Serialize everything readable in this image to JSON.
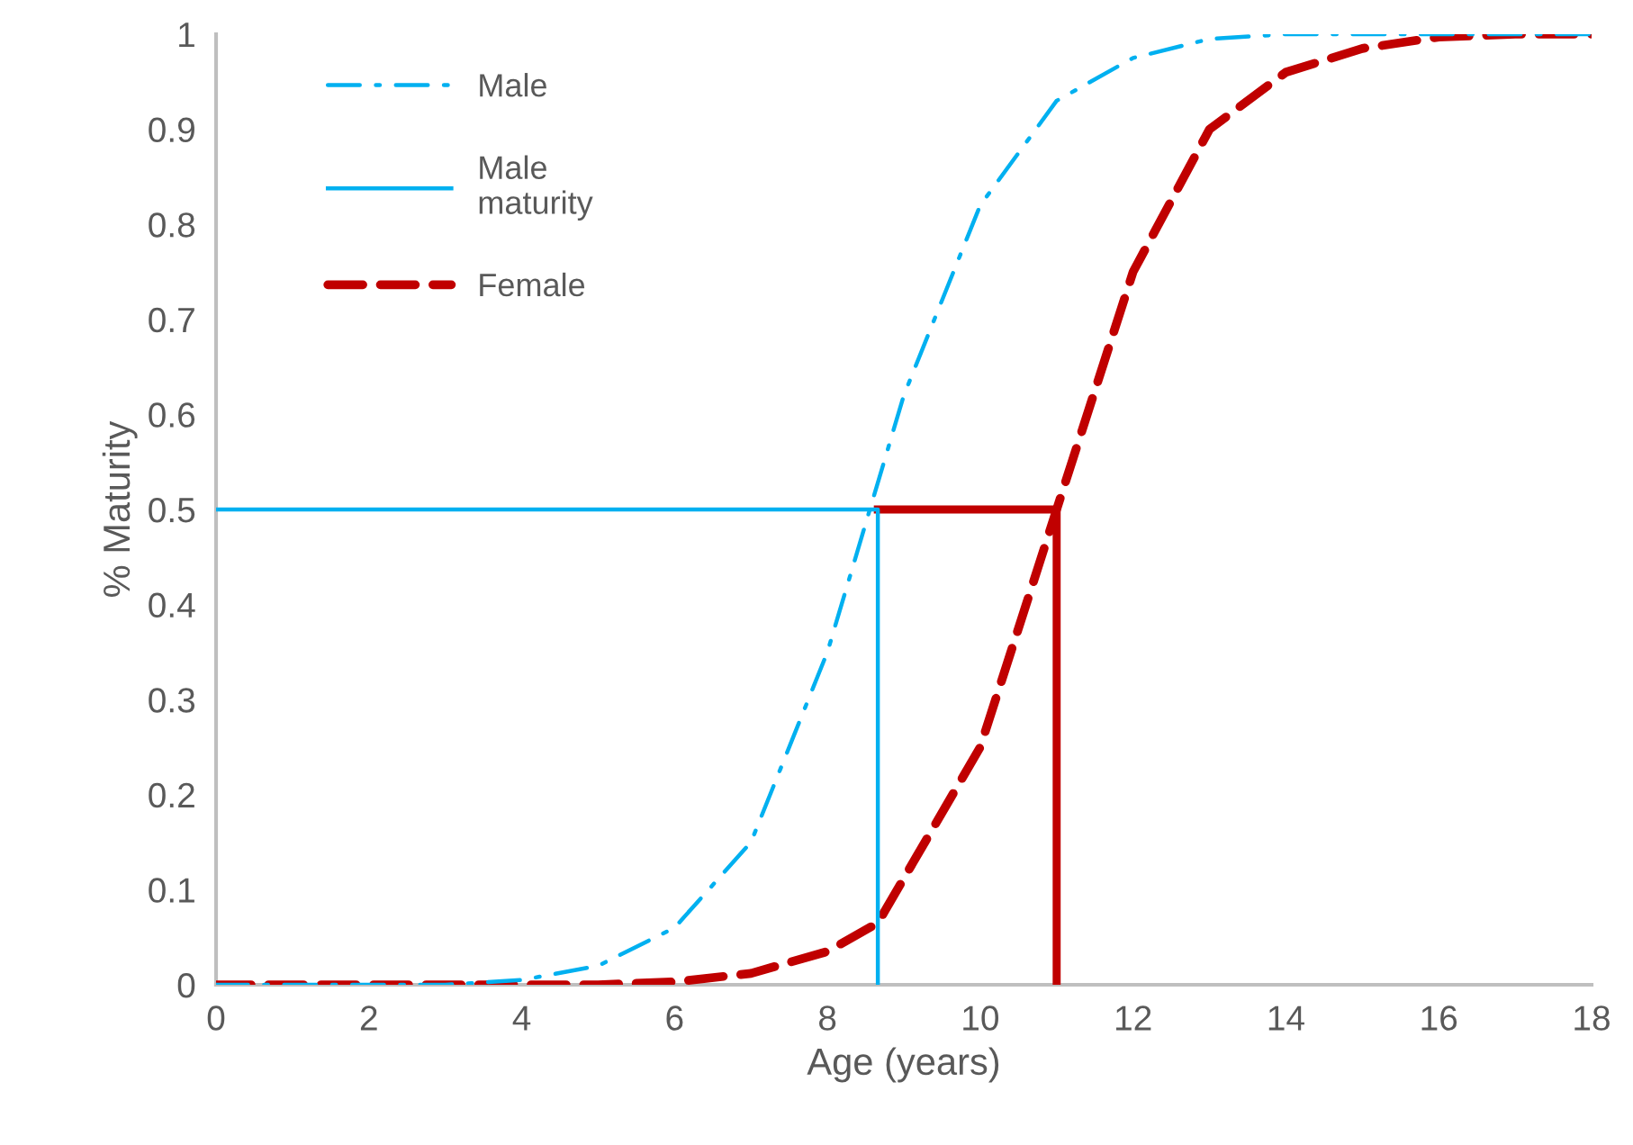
{
  "chart_data": {
    "type": "line",
    "xlabel": "Age (years)",
    "ylabel": "% Maturity",
    "xlim": [
      0,
      18
    ],
    "xticks": [
      0,
      2,
      4,
      6,
      8,
      10,
      12,
      14,
      16,
      18
    ],
    "ylim": [
      0,
      1
    ],
    "yticks": [
      0,
      0.1,
      0.2,
      0.3,
      0.4,
      0.5,
      0.6,
      0.7,
      0.8,
      0.9,
      1
    ],
    "grid": false,
    "legend": "top left",
    "marker": "none",
    "series": [
      {
        "name": "Male",
        "color": "#00b0f0",
        "line_style": "dashdot",
        "x": [
          0,
          1,
          2,
          3,
          4,
          5,
          6,
          7,
          8,
          9,
          10,
          11,
          12,
          13,
          14,
          15,
          16,
          17,
          18
        ],
        "values": [
          0,
          0,
          0,
          0,
          0.005,
          0.02,
          0.06,
          0.15,
          0.35,
          0.62,
          0.82,
          0.93,
          0.975,
          0.995,
          1,
          1,
          1,
          1,
          1
        ]
      },
      {
        "name": "Male maturity",
        "color": "#00b0f0",
        "line_style": "solid",
        "x": [
          0,
          8.66,
          8.66
        ],
        "values": [
          0.5,
          0.5,
          0
        ]
      },
      {
        "name": "Female",
        "color": "#c00000",
        "line_style": "dashed",
        "x": [
          0,
          1,
          2,
          3,
          4,
          5,
          6,
          7,
          8,
          8.66,
          10,
          11,
          12,
          13,
          14,
          15,
          16,
          17,
          18
        ],
        "values": [
          0,
          0,
          0,
          0,
          0,
          0,
          0.003,
          0.012,
          0.035,
          0.065,
          0.25,
          0.5,
          0.75,
          0.9,
          0.96,
          0.985,
          0.997,
          1,
          1
        ]
      },
      {
        "color": "#c00000",
        "line_style": "solid",
        "x": [
          8.66,
          11,
          11
        ],
        "values": [
          0.5,
          0.5,
          0
        ]
      }
    ]
  }
}
